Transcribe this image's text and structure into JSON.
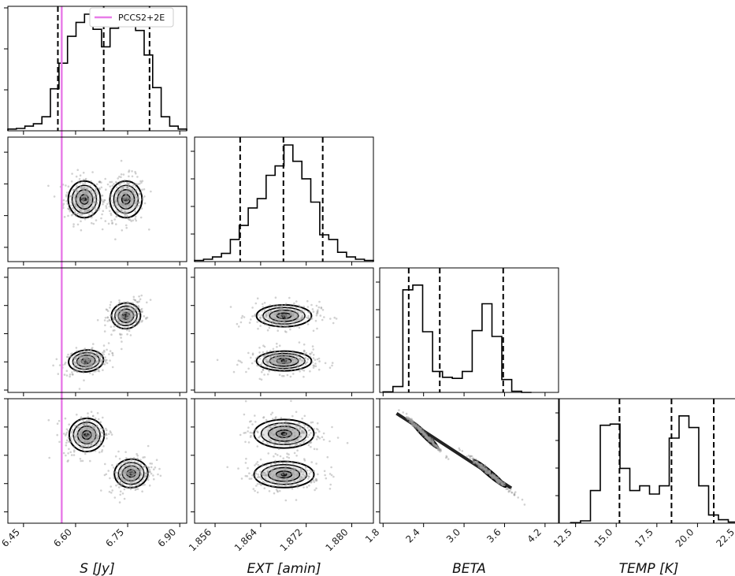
{
  "chart_data": {
    "type": "corner",
    "parameters": [
      {
        "key": "S",
        "label": "$S\\,[Jy]$",
        "display": "S [Jy]",
        "range": [
          6.405,
          6.92
        ],
        "ticks": [
          6.45,
          6.6,
          6.75,
          6.9
        ],
        "tick_labels": [
          "6.45",
          "6.60",
          "6.75",
          "6.90"
        ],
        "quantiles": [
          6.549,
          6.681,
          6.813
        ]
      },
      {
        "key": "EXT",
        "label": "EXT [amin]",
        "display": "EXT [amin]",
        "range": [
          1.8524,
          1.8838
        ],
        "ticks": [
          1.856,
          1.864,
          1.872,
          1.88
        ],
        "tick_labels": [
          "1.856",
          "1.864",
          "1.872",
          "1.880"
        ],
        "quantiles": [
          1.8604,
          1.868,
          1.8749
        ]
      },
      {
        "key": "BETA",
        "label": "BETA",
        "display": "BETA",
        "range": [
          1.75,
          4.4
        ],
        "ticks": [
          1.8,
          2.4,
          3.0,
          3.6,
          4.2
        ],
        "tick_labels": [
          "1.8",
          "2.4",
          "3.0",
          "3.6",
          "4.2"
        ],
        "quantiles": [
          2.18,
          2.64,
          3.58
        ]
      },
      {
        "key": "TEMP",
        "label": "TEMP [K]",
        "display": "TEMP [K]",
        "range": [
          11.5,
          22.5
        ],
        "ticks": [
          12.5,
          15.0,
          17.5,
          20.0,
          22.5
        ],
        "tick_labels": [
          "12.5",
          "15.0",
          "17.5",
          "20.0",
          "22.5"
        ],
        "quantiles": [
          15.2,
          18.4,
          21.0
        ]
      }
    ],
    "truth": {
      "parameter": "S",
      "value": 6.56,
      "label": "PCCS2+2E",
      "color": "#e87de8"
    },
    "histograms": {
      "S": [
        0.015,
        0.02,
        0.04,
        0.06,
        0.12,
        0.36,
        0.58,
        0.81,
        0.93,
        1.0,
        0.87,
        0.72,
        0.88,
        0.99,
        0.97,
        0.86,
        0.65,
        0.37,
        0.12,
        0.04,
        0.015
      ],
      "EXT": [
        0.01,
        0.02,
        0.04,
        0.07,
        0.19,
        0.31,
        0.46,
        0.54,
        0.74,
        0.82,
        1.0,
        0.86,
        0.71,
        0.51,
        0.23,
        0.19,
        0.08,
        0.04,
        0.02,
        0.01
      ],
      "BETA": [
        0.005,
        0.05,
        0.88,
        0.92,
        0.52,
        0.18,
        0.13,
        0.12,
        0.18,
        0.53,
        0.76,
        0.48,
        0.11,
        0.01,
        0.0
      ],
      "TEMP": [
        0.005,
        0.02,
        0.28,
        0.84,
        0.85,
        0.47,
        0.28,
        0.32,
        0.25,
        0.32,
        0.73,
        0.92,
        0.82,
        0.32,
        0.07,
        0.03,
        0.01
      ]
    },
    "histograms_y_ticks": 3,
    "joint_modes": [
      {
        "x": "S",
        "y": "EXT",
        "modes": [
          {
            "center": [
              6.625,
              1.8681
            ],
            "sd": [
              0.022,
              0.0022
            ],
            "rho": 0.0,
            "w": 0.5
          },
          {
            "center": [
              6.745,
              1.8681
            ],
            "sd": [
              0.022,
              0.0022
            ],
            "rho": 0.0,
            "w": 0.5
          }
        ]
      },
      {
        "x": "S",
        "y": "BETA",
        "modes": [
          {
            "center": [
              6.63,
              2.42
            ],
            "sd": [
              0.024,
              0.11
            ],
            "rho": 0.3,
            "w": 0.52
          },
          {
            "center": [
              6.745,
              3.38
            ],
            "sd": [
              0.02,
              0.13
            ],
            "rho": 0.3,
            "w": 0.48
          }
        ]
      },
      {
        "x": "EXT",
        "y": "BETA",
        "modes": [
          {
            "center": [
              1.8681,
              2.42
            ],
            "sd": [
              0.0023,
              0.1
            ],
            "rho": 0.0,
            "w": 0.52
          },
          {
            "center": [
              1.8681,
              3.38
            ],
            "sd": [
              0.0023,
              0.11
            ],
            "rho": 0.0,
            "w": 0.48
          }
        ]
      },
      {
        "x": "S",
        "y": "TEMP",
        "modes": [
          {
            "center": [
              6.632,
              19.3
            ],
            "sd": [
              0.024,
              0.7
            ],
            "rho": 0.2,
            "w": 0.5
          },
          {
            "center": [
              6.76,
              15.9
            ],
            "sd": [
              0.023,
              0.6
            ],
            "rho": 0.2,
            "w": 0.5
          }
        ]
      },
      {
        "x": "EXT",
        "y": "TEMP",
        "modes": [
          {
            "center": [
              1.8681,
              19.4
            ],
            "sd": [
              0.0025,
              0.6
            ],
            "rho": 0.0,
            "w": 0.5
          },
          {
            "center": [
              1.8681,
              15.8
            ],
            "sd": [
              0.0025,
              0.55
            ],
            "rho": 0.0,
            "w": 0.5
          }
        ]
      },
      {
        "x": "BETA",
        "y": "TEMP",
        "modes": [
          {
            "center": [
              2.42,
              19.3
            ],
            "sd": [
              0.1,
              0.6
            ],
            "rho": -0.99,
            "w": 0.5
          },
          {
            "center": [
              3.38,
              15.9
            ],
            "sd": [
              0.12,
              0.6
            ],
            "rho": -0.99,
            "w": 0.5
          }
        ]
      }
    ],
    "contour_levels": [
      "0.5-sigma",
      "1-sigma",
      "1.5-sigma",
      "2-sigma"
    ],
    "scatter_color": "#9a9a9a",
    "line_color": "#000000",
    "legend": {
      "text": "PCCS2+2E",
      "position": "top-right of first panel"
    }
  }
}
